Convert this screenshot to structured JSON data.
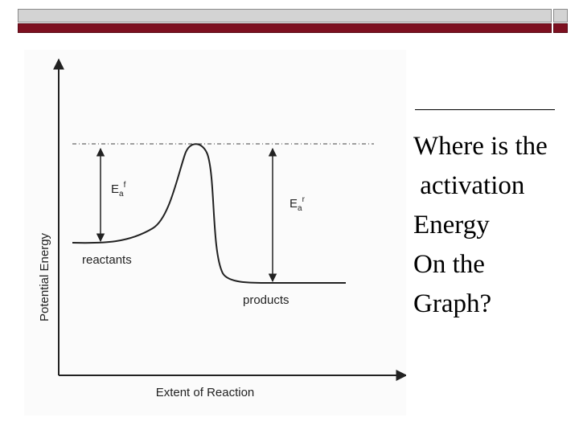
{
  "slide": {
    "question_lines": [
      "Where is the",
      " activation",
      "Energy",
      "On the",
      "Graph?"
    ]
  },
  "diagram": {
    "y_axis_label": "Potential Energy",
    "x_axis_label": "Extent of Reaction",
    "reactants_label": "reactants",
    "products_label": "products",
    "forward_symbol": {
      "base": "E",
      "sub": "a",
      "sup": "f"
    },
    "reverse_symbol": {
      "base": "E",
      "sub": "a",
      "sup": "r"
    }
  },
  "colors": {
    "title_bar_top": "#d3d3d3",
    "title_bar_bottom": "#7d1020",
    "text": "#000000"
  }
}
